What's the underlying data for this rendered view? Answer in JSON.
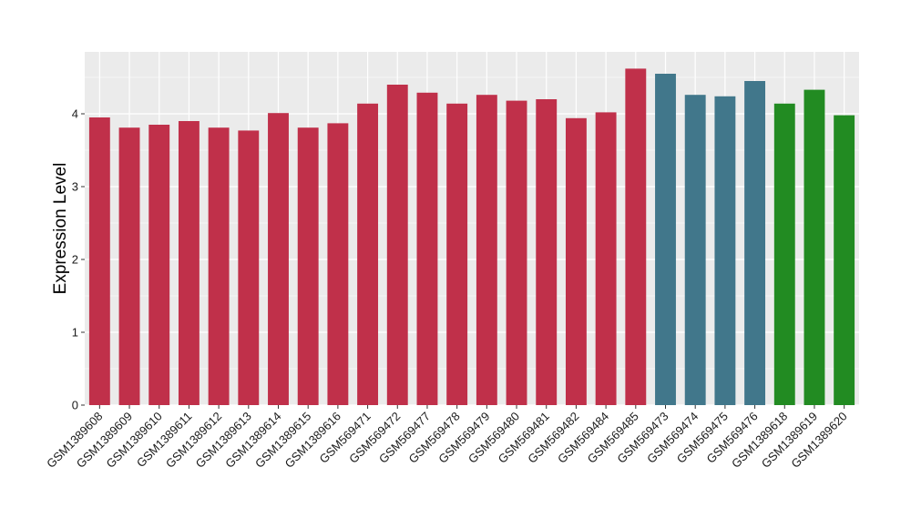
{
  "chart_data": {
    "type": "bar",
    "ylabel": "Expression Level",
    "xlabel": "",
    "title": "",
    "ylim": [
      0,
      4.85
    ],
    "yticks": [
      0,
      1,
      2,
      3,
      4
    ],
    "grid": true,
    "legend": "none",
    "panel_background": "#ebebeb",
    "grid_color": "#ffffff",
    "groups": [
      {
        "color": "#c0304a"
      },
      {
        "color": "#41778b"
      },
      {
        "color": "#228b22"
      }
    ],
    "categories": [
      "GSM1389608",
      "GSM1389609",
      "GSM1389610",
      "GSM1389611",
      "GSM1389612",
      "GSM1389613",
      "GSM1389614",
      "GSM1389615",
      "GSM1389616",
      "GSM569471",
      "GSM569472",
      "GSM569477",
      "GSM569478",
      "GSM569479",
      "GSM569480",
      "GSM569481",
      "GSM569482",
      "GSM569484",
      "GSM569485",
      "GSM569473",
      "GSM569474",
      "GSM569475",
      "GSM569476",
      "GSM1389618",
      "GSM1389619",
      "GSM1389620"
    ],
    "values": [
      3.95,
      3.81,
      3.85,
      3.9,
      3.81,
      3.77,
      4.01,
      3.81,
      3.87,
      4.14,
      4.4,
      4.29,
      4.14,
      4.26,
      4.18,
      4.2,
      3.94,
      4.02,
      4.62,
      4.55,
      4.26,
      4.24,
      4.45,
      4.14,
      4.33,
      3.98
    ],
    "group_index": [
      0,
      0,
      0,
      0,
      0,
      0,
      0,
      0,
      0,
      0,
      0,
      0,
      0,
      0,
      0,
      0,
      0,
      0,
      0,
      1,
      1,
      1,
      1,
      2,
      2,
      2
    ]
  }
}
